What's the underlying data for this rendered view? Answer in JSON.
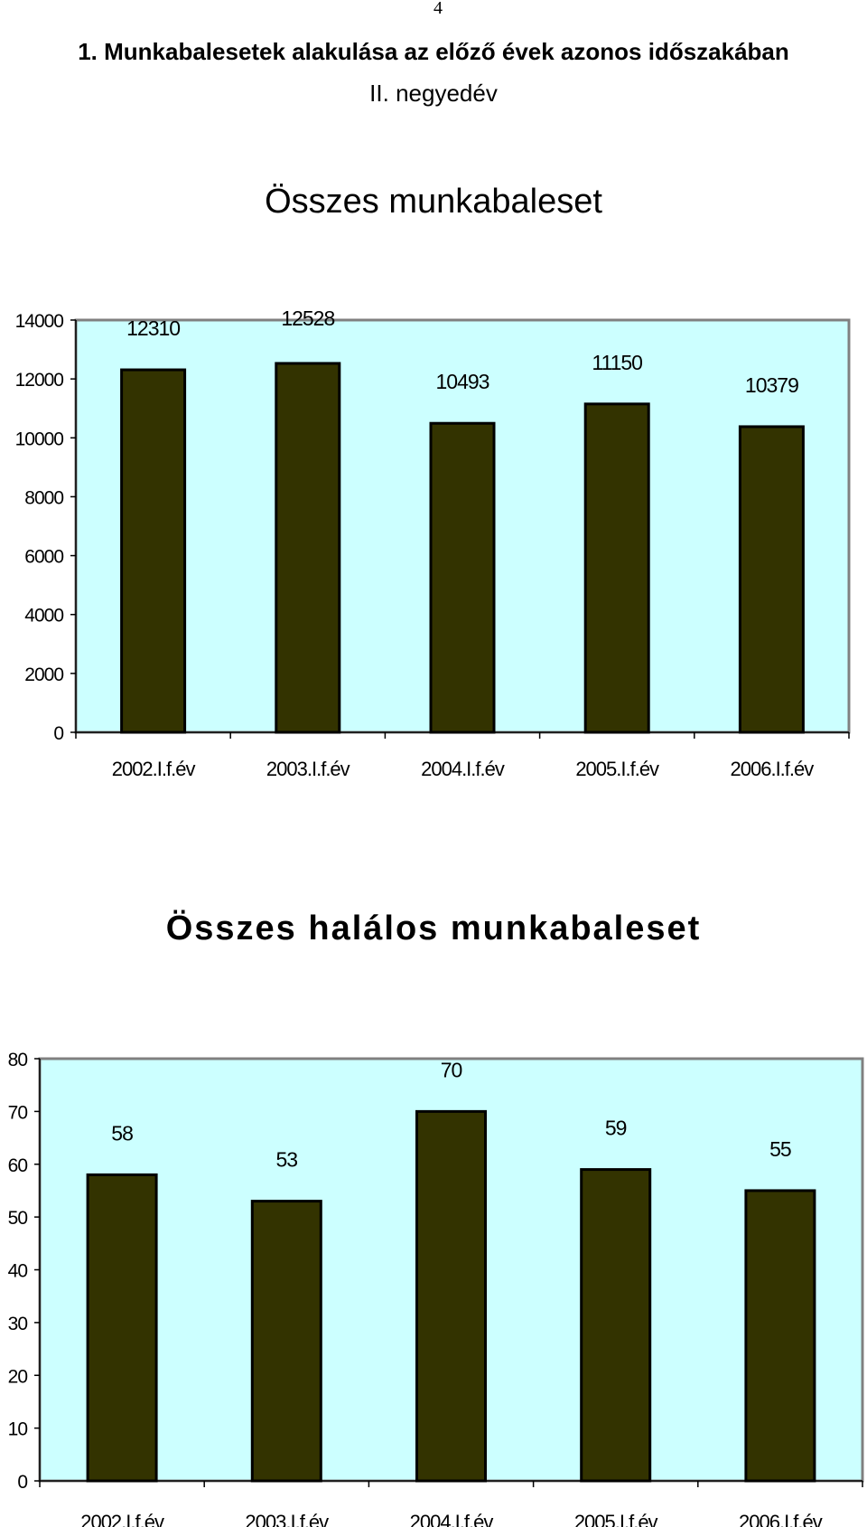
{
  "page": {
    "number": "4",
    "heading": "1.  Munkabalesetek alakulása az előző évek azonos időszakában",
    "subheading": "II. negyedév"
  },
  "colors": {
    "plot_background": "#ccffff",
    "bar_fill": "#333300",
    "bar_stroke": "#000000",
    "plot_border": "#808080"
  },
  "chart_data": [
    {
      "type": "bar",
      "title": "Összes munkabaleset",
      "xlabel": "",
      "ylabel": "",
      "categories": [
        "2002.I.f.év",
        "2003.I.f.év",
        "2004.I.f.év",
        "2005.I.f.év",
        "2006.I.f.év"
      ],
      "values": [
        12310,
        12528,
        10493,
        11150,
        10379
      ],
      "data_labels": [
        "12310",
        "12528",
        "10493",
        "11150",
        "10379"
      ],
      "ylim": [
        0,
        14000
      ],
      "yticks": [
        "0",
        "2000",
        "4000",
        "6000",
        "8000",
        "10000",
        "12000",
        "14000"
      ],
      "grid": false,
      "legend": "none"
    },
    {
      "type": "bar",
      "title": "Összes halálos munkabaleset",
      "xlabel": "",
      "ylabel": "",
      "categories": [
        "2002.I.f.év",
        "2003.I.f.év",
        "2004.I.f.év",
        "2005.I.f.év",
        "2006.I.f.év"
      ],
      "values": [
        58,
        53,
        70,
        59,
        55
      ],
      "data_labels": [
        "58",
        "53",
        "70",
        "59",
        "55"
      ],
      "ylim": [
        0,
        80
      ],
      "yticks": [
        "0",
        "10",
        "20",
        "30",
        "40",
        "50",
        "60",
        "70",
        "80"
      ],
      "grid": false,
      "legend": "none"
    }
  ]
}
